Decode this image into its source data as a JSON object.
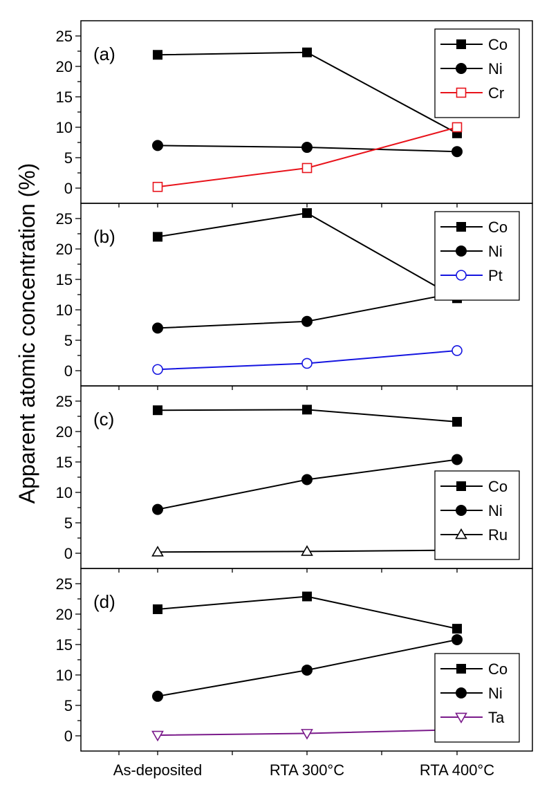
{
  "chart_data": {
    "type": "line",
    "ylabel": "Apparent atomic concentration (%)",
    "categories": [
      "As-deposited",
      "RTA 300°C",
      "RTA 400°C"
    ],
    "ylim": [
      -2.5,
      27.5
    ],
    "yticks": [
      0,
      5,
      10,
      15,
      20,
      25
    ],
    "legend_placement": "top-right",
    "panels": [
      {
        "label": "(a)",
        "legend_placement": "top-right",
        "series": [
          {
            "name": "Co",
            "values": [
              21.9,
              22.3,
              9.0
            ],
            "color": "#000000",
            "marker": "filled-square"
          },
          {
            "name": "Ni",
            "values": [
              7.0,
              6.7,
              6.0
            ],
            "color": "#000000",
            "marker": "filled-circle"
          },
          {
            "name": "Cr",
            "values": [
              0.2,
              3.3,
              10.0
            ],
            "color": "#e8121a",
            "marker": "open-square"
          }
        ]
      },
      {
        "label": "(b)",
        "legend_placement": "top-right",
        "series": [
          {
            "name": "Co",
            "values": [
              22.0,
              25.9,
              11.9
            ],
            "color": "#000000",
            "marker": "filled-square"
          },
          {
            "name": "Ni",
            "values": [
              7.0,
              8.1,
              12.8
            ],
            "color": "#000000",
            "marker": "filled-circle"
          },
          {
            "name": "Pt",
            "values": [
              0.2,
              1.2,
              3.3
            ],
            "color": "#1414e0",
            "marker": "open-circle"
          }
        ]
      },
      {
        "label": "(c)",
        "legend_placement": "bottom-right",
        "series": [
          {
            "name": "Co",
            "values": [
              23.5,
              23.6,
              21.6
            ],
            "color": "#000000",
            "marker": "filled-square"
          },
          {
            "name": "Ni",
            "values": [
              7.2,
              12.1,
              15.4
            ],
            "color": "#000000",
            "marker": "filled-circle"
          },
          {
            "name": "Ru",
            "values": [
              0.2,
              0.3,
              0.5
            ],
            "color": "#000000",
            "marker": "open-triangle-up"
          }
        ]
      },
      {
        "label": "(d)",
        "legend_placement": "bottom-right",
        "series": [
          {
            "name": "Co",
            "values": [
              20.8,
              22.9,
              17.6
            ],
            "color": "#000000",
            "marker": "filled-square"
          },
          {
            "name": "Ni",
            "values": [
              6.5,
              10.8,
              15.8
            ],
            "color": "#000000",
            "marker": "filled-circle"
          },
          {
            "name": "Ta",
            "values": [
              0.1,
              0.4,
              1.0
            ],
            "color": "#7a1a8a",
            "marker": "open-triangle-down"
          }
        ]
      }
    ]
  }
}
